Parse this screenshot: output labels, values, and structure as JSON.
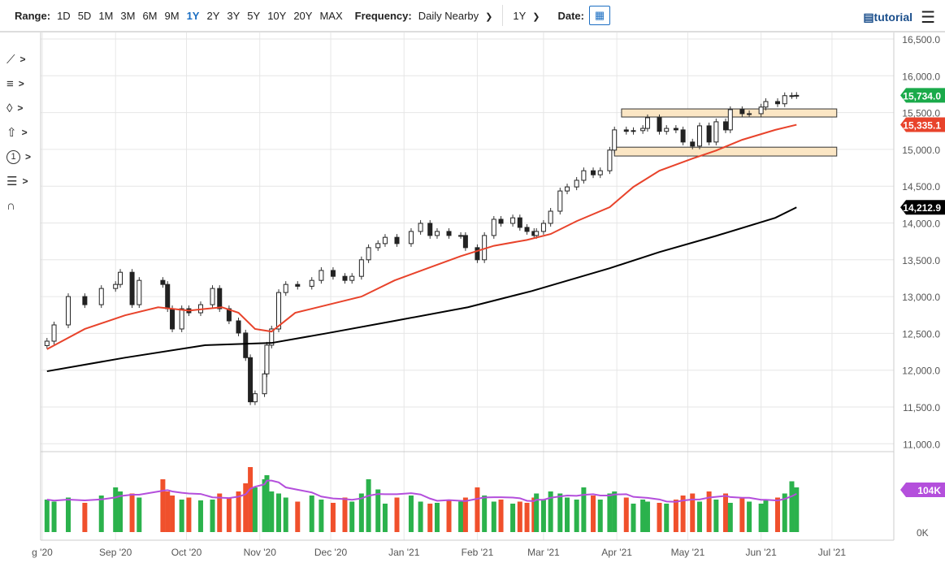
{
  "toolbar": {
    "range_label": "Range:",
    "ranges": [
      "1D",
      "5D",
      "1M",
      "3M",
      "6M",
      "9M",
      "1Y",
      "2Y",
      "3Y",
      "5Y",
      "10Y",
      "20Y",
      "MAX"
    ],
    "active_range": "1Y",
    "frequency_label": "Frequency:",
    "frequency_value": "Daily Nearby",
    "period_value": "1Y",
    "date_label": "Date:",
    "tutorial_label": "tutorial"
  },
  "sidebar": {
    "tools": [
      "line-tool-icon",
      "list-tool-icon",
      "shape-tool-icon",
      "arrow-tool-icon",
      "number-tool-icon",
      "settings-tool-icon",
      "magnet-icon"
    ],
    "number_glyph": "1"
  },
  "colors": {
    "up": "#2bb24c",
    "down": "#f0502c",
    "ma50": "#e8432b",
    "ma200": "#000000",
    "volume_ma": "#b44fdc",
    "last_price": "#1aaa4a",
    "zone_fill": "#fbe6c4"
  },
  "chart_data": {
    "type": "candlestick",
    "x_ticks": [
      {
        "date": "2020-08-01",
        "label": "g '20"
      },
      {
        "date": "2020-09-01",
        "label": "Sep '20"
      },
      {
        "date": "2020-10-01",
        "label": "Oct '20"
      },
      {
        "date": "2020-11-01",
        "label": "Nov '20"
      },
      {
        "date": "2020-12-01",
        "label": "Dec '20"
      },
      {
        "date": "2021-01-01",
        "label": "Jan '21"
      },
      {
        "date": "2021-02-01",
        "label": "Feb '21"
      },
      {
        "date": "2021-03-01",
        "label": "Mar '21"
      },
      {
        "date": "2021-04-01",
        "label": "Apr '21"
      },
      {
        "date": "2021-05-01",
        "label": "May '21"
      },
      {
        "date": "2021-06-01",
        "label": "Jun '21"
      },
      {
        "date": "2021-07-01",
        "label": "Jul '21"
      }
    ],
    "y_ticks": [
      "16,500.0",
      "16,000.0",
      "15,500.0",
      "15,000.0",
      "14,500.0",
      "14,000.0",
      "13,500.0",
      "13,000.0",
      "12,500.0",
      "12,000.0",
      "11,500.0",
      "11,000.0"
    ],
    "y_tick_values": [
      16500,
      16000,
      15500,
      15000,
      14500,
      14000,
      13500,
      13000,
      12500,
      12000,
      11500,
      11000
    ],
    "ylim": [
      10900,
      16550
    ],
    "closes": [
      [
        "2020-08-03",
        12394
      ],
      [
        "2020-08-06",
        12615
      ],
      [
        "2020-08-12",
        13000
      ],
      [
        "2020-08-19",
        12890
      ],
      [
        "2020-08-26",
        13110
      ],
      [
        "2020-09-01",
        13165
      ],
      [
        "2020-09-03",
        13330
      ],
      [
        "2020-09-08",
        12890
      ],
      [
        "2020-09-11",
        13220
      ],
      [
        "2020-09-21",
        13165
      ],
      [
        "2020-09-23",
        12835
      ],
      [
        "2020-09-25",
        12560
      ],
      [
        "2020-09-29",
        12835
      ],
      [
        "2020-10-02",
        12780
      ],
      [
        "2020-10-07",
        12890
      ],
      [
        "2020-10-12",
        13110
      ],
      [
        "2020-10-15",
        12835
      ],
      [
        "2020-10-19",
        12670
      ],
      [
        "2020-10-23",
        12505
      ],
      [
        "2020-10-26",
        12170
      ],
      [
        "2020-10-28",
        11570
      ],
      [
        "2020-10-30",
        11680
      ],
      [
        "2020-11-03",
        11950
      ],
      [
        "2020-11-04",
        12340
      ],
      [
        "2020-11-06",
        12560
      ],
      [
        "2020-11-09",
        13055
      ],
      [
        "2020-11-12",
        13165
      ],
      [
        "2020-11-17",
        13140
      ],
      [
        "2020-11-23",
        13220
      ],
      [
        "2020-11-27",
        13355
      ],
      [
        "2020-12-02",
        13275
      ],
      [
        "2020-12-07",
        13220
      ],
      [
        "2020-12-10",
        13275
      ],
      [
        "2020-12-14",
        13500
      ],
      [
        "2020-12-17",
        13665
      ],
      [
        "2020-12-21",
        13720
      ],
      [
        "2020-12-24",
        13805
      ],
      [
        "2020-12-29",
        13720
      ],
      [
        "2021-01-04",
        13885
      ],
      [
        "2021-01-08",
        13995
      ],
      [
        "2021-01-12",
        13830
      ],
      [
        "2021-01-15",
        13885
      ],
      [
        "2021-01-20",
        13830
      ],
      [
        "2021-01-25",
        13830
      ],
      [
        "2021-01-27",
        13665
      ],
      [
        "2021-02-01",
        13500
      ],
      [
        "2021-02-04",
        13830
      ],
      [
        "2021-02-08",
        14050
      ],
      [
        "2021-02-11",
        13995
      ],
      [
        "2021-02-16",
        14070
      ],
      [
        "2021-02-19",
        13940
      ],
      [
        "2021-02-22",
        13885
      ],
      [
        "2021-02-25",
        13830
      ],
      [
        "2021-02-26",
        13885
      ],
      [
        "2021-03-01",
        13995
      ],
      [
        "2021-03-04",
        14160
      ],
      [
        "2021-03-08",
        14435
      ],
      [
        "2021-03-11",
        14490
      ],
      [
        "2021-03-15",
        14580
      ],
      [
        "2021-03-18",
        14710
      ],
      [
        "2021-03-22",
        14655
      ],
      [
        "2021-03-25",
        14710
      ],
      [
        "2021-03-29",
        14990
      ],
      [
        "2021-03-31",
        15265
      ],
      [
        "2021-04-05",
        15245
      ],
      [
        "2021-04-08",
        15255
      ],
      [
        "2021-04-12",
        15285
      ],
      [
        "2021-04-14",
        15430
      ],
      [
        "2021-04-19",
        15245
      ],
      [
        "2021-04-22",
        15285
      ],
      [
        "2021-04-26",
        15265
      ],
      [
        "2021-04-29",
        15100
      ],
      [
        "2021-05-03",
        15045
      ],
      [
        "2021-05-06",
        15320
      ],
      [
        "2021-05-10",
        15100
      ],
      [
        "2021-05-13",
        15375
      ],
      [
        "2021-05-17",
        15265
      ],
      [
        "2021-05-19",
        15540
      ],
      [
        "2021-05-24",
        15485
      ],
      [
        "2021-05-27",
        15485
      ],
      [
        "2021-06-01",
        15575
      ],
      [
        "2021-06-03",
        15650
      ],
      [
        "2021-06-08",
        15620
      ],
      [
        "2021-06-11",
        15730
      ],
      [
        "2021-06-14",
        15730
      ],
      [
        "2021-06-16",
        15734
      ]
    ],
    "volume": [
      80,
      75,
      85,
      72,
      90,
      110,
      100,
      95,
      85,
      130,
      100,
      90,
      80,
      85,
      78,
      80,
      95,
      85,
      100,
      120,
      160,
      110,
      130,
      140,
      100,
      95,
      85,
      75,
      90,
      80,
      72,
      85,
      75,
      95,
      130,
      105,
      70,
      85,
      90,
      75,
      70,
      72,
      80,
      75,
      85,
      110,
      90,
      75,
      80,
      70,
      75,
      72,
      85,
      95,
      80,
      100,
      95,
      85,
      80,
      110,
      90,
      80,
      95,
      100,
      85,
      70,
      80,
      75,
      72,
      70,
      80,
      90,
      95,
      75,
      100,
      80,
      95,
      72,
      85,
      75,
      70,
      80,
      85,
      95,
      125,
      110
    ],
    "series": [
      {
        "name": "ma50",
        "label": "15,335.1",
        "points": [
          [
            "2020-08-03",
            12285
          ],
          [
            "2020-08-19",
            12560
          ],
          [
            "2020-09-05",
            12745
          ],
          [
            "2020-09-19",
            12855
          ],
          [
            "2020-10-02",
            12810
          ],
          [
            "2020-10-16",
            12855
          ],
          [
            "2020-10-23",
            12780
          ],
          [
            "2020-10-30",
            12560
          ],
          [
            "2020-11-06",
            12525
          ],
          [
            "2020-11-16",
            12780
          ],
          [
            "2020-11-30",
            12890
          ],
          [
            "2020-12-14",
            13000
          ],
          [
            "2020-12-28",
            13220
          ],
          [
            "2021-01-11",
            13385
          ],
          [
            "2021-01-25",
            13550
          ],
          [
            "2021-02-08",
            13690
          ],
          [
            "2021-02-22",
            13770
          ],
          [
            "2021-03-04",
            13850
          ],
          [
            "2021-03-15",
            14025
          ],
          [
            "2021-03-29",
            14215
          ],
          [
            "2021-04-08",
            14490
          ],
          [
            "2021-04-19",
            14710
          ],
          [
            "2021-05-03",
            14875
          ],
          [
            "2021-05-13",
            14985
          ],
          [
            "2021-05-24",
            15130
          ],
          [
            "2021-06-07",
            15265
          ],
          [
            "2021-06-16",
            15335
          ]
        ]
      },
      {
        "name": "ma200",
        "label": "14,212.9",
        "points": [
          [
            "2020-08-03",
            11985
          ],
          [
            "2020-09-05",
            12170
          ],
          [
            "2020-10-09",
            12340
          ],
          [
            "2020-11-06",
            12370
          ],
          [
            "2020-11-30",
            12505
          ],
          [
            "2020-12-28",
            12670
          ],
          [
            "2021-01-28",
            12855
          ],
          [
            "2021-02-24",
            13075
          ],
          [
            "2021-03-29",
            13385
          ],
          [
            "2021-04-19",
            13605
          ],
          [
            "2021-05-13",
            13825
          ],
          [
            "2021-06-07",
            14070
          ],
          [
            "2021-06-16",
            14212.9
          ]
        ]
      }
    ],
    "last_price_label": "15,734.0",
    "zones": [
      {
        "from": "2021-04-03",
        "to": "2021-07-03",
        "low": 15440,
        "high": 15550
      },
      {
        "from": "2021-03-31",
        "to": "2021-07-03",
        "low": 14910,
        "high": 15030
      }
    ],
    "volume_label": "104K",
    "volume_zero_label": "0K",
    "volume_unit": "K"
  }
}
